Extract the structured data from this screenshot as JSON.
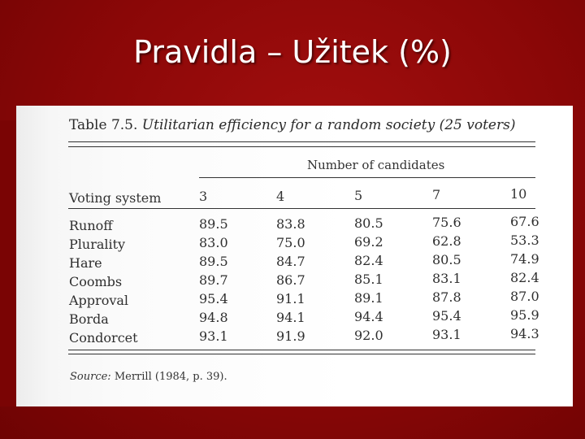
{
  "slide": {
    "title": "Pravidla – Užitek (%)"
  },
  "table": {
    "caption_number": "Table 7.5.",
    "caption_text": "Utilitarian efficiency for a random society (25 voters)",
    "group_header": "Number of candidates",
    "row_header": "Voting system",
    "columns": [
      "3",
      "4",
      "5",
      "7",
      "10"
    ],
    "rows": [
      {
        "name": "Runoff",
        "values": [
          "89.5",
          "83.8",
          "80.5",
          "75.6",
          "67.6"
        ]
      },
      {
        "name": "Plurality",
        "values": [
          "83.0",
          "75.0",
          "69.2",
          "62.8",
          "53.3"
        ]
      },
      {
        "name": "Hare",
        "values": [
          "89.5",
          "84.7",
          "82.4",
          "80.5",
          "74.9"
        ]
      },
      {
        "name": "Coombs",
        "values": [
          "89.7",
          "86.7",
          "85.1",
          "83.1",
          "82.4"
        ]
      },
      {
        "name": "Approval",
        "values": [
          "95.4",
          "91.1",
          "89.1",
          "87.8",
          "87.0"
        ]
      },
      {
        "name": "Borda",
        "values": [
          "94.8",
          "94.1",
          "94.4",
          "95.4",
          "95.9"
        ]
      },
      {
        "name": "Condorcet",
        "values": [
          "93.1",
          "91.9",
          "92.0",
          "93.1",
          "94.3"
        ]
      }
    ],
    "source_label": "Source:",
    "source_text": "Merrill (1984, p. 39)."
  },
  "colors": {
    "background": "#8a0707",
    "title": "#ffffff",
    "page": "#ffffff"
  }
}
